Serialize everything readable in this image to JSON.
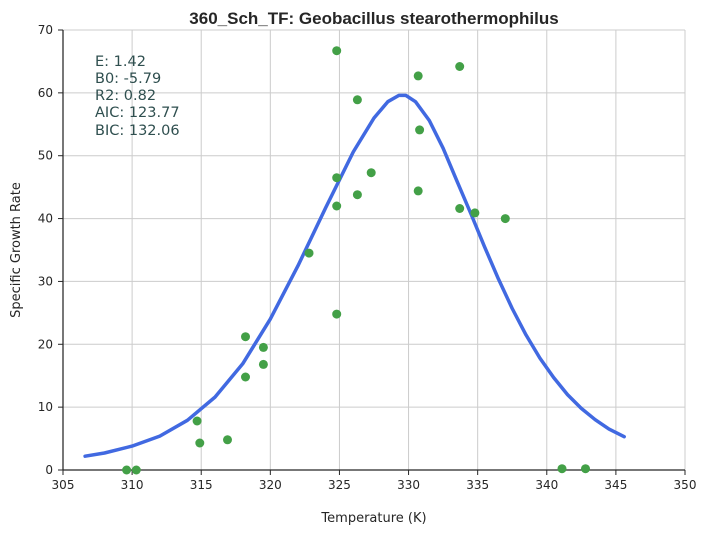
{
  "chart_data": {
    "type": "scatter",
    "title": "360_Sch_TF: Geobacillus stearothermophilus",
    "xlabel": "Temperature (K)",
    "ylabel": "Specific Growth Rate",
    "xlim": [
      305,
      350
    ],
    "ylim": [
      0,
      70
    ],
    "xticks": [
      305,
      310,
      315,
      320,
      325,
      330,
      335,
      340,
      345,
      350
    ],
    "yticks": [
      0,
      10,
      20,
      30,
      40,
      50,
      60,
      70
    ],
    "grid": true,
    "annotations": [
      {
        "label": "E:",
        "value": "1.42",
        "text": "E:  1.42"
      },
      {
        "label": "B0:",
        "value": "-5.79",
        "text": "B0:  -5.79"
      },
      {
        "label": "R2:",
        "value": "0.82",
        "text": "R2:  0.82"
      },
      {
        "label": "AIC:",
        "value": "123.77",
        "text": "AIC: 123.77"
      },
      {
        "label": "BIC:",
        "value": "132.06",
        "text": "BIC: 132.06"
      }
    ],
    "series": [
      {
        "kind": "scatter",
        "color": "#43a047",
        "points": [
          [
            309.6,
            0.0
          ],
          [
            310.3,
            0.0
          ],
          [
            314.7,
            7.8
          ],
          [
            314.9,
            4.3
          ],
          [
            316.9,
            4.8
          ],
          [
            318.2,
            21.2
          ],
          [
            318.2,
            14.8
          ],
          [
            319.5,
            19.5
          ],
          [
            319.5,
            16.8
          ],
          [
            322.8,
            34.5
          ],
          [
            324.8,
            66.7
          ],
          [
            324.8,
            46.5
          ],
          [
            324.8,
            42.0
          ],
          [
            324.8,
            24.8
          ],
          [
            326.3,
            58.9
          ],
          [
            326.3,
            43.8
          ],
          [
            327.3,
            47.3
          ],
          [
            330.7,
            62.7
          ],
          [
            330.8,
            54.1
          ],
          [
            330.7,
            44.4
          ],
          [
            333.7,
            64.2
          ],
          [
            333.7,
            41.6
          ],
          [
            334.8,
            40.9
          ],
          [
            337.0,
            40.0
          ],
          [
            341.1,
            0.2
          ],
          [
            342.8,
            0.2
          ]
        ]
      },
      {
        "kind": "line",
        "color": "#4169e1",
        "points": [
          [
            306.6,
            2.2
          ],
          [
            308.0,
            2.7
          ],
          [
            310.0,
            3.8
          ],
          [
            312.0,
            5.4
          ],
          [
            314.0,
            7.9
          ],
          [
            316.0,
            11.6
          ],
          [
            318.0,
            16.9
          ],
          [
            320.0,
            24.0
          ],
          [
            322.0,
            32.5
          ],
          [
            324.0,
            41.7
          ],
          [
            326.0,
            50.6
          ],
          [
            327.5,
            56.0
          ],
          [
            328.5,
            58.6
          ],
          [
            329.3,
            59.6
          ],
          [
            329.8,
            59.6
          ],
          [
            330.5,
            58.6
          ],
          [
            331.5,
            55.6
          ],
          [
            332.5,
            51.2
          ],
          [
            333.5,
            46.0
          ],
          [
            334.5,
            40.8
          ],
          [
            335.5,
            35.5
          ],
          [
            336.5,
            30.4
          ],
          [
            337.5,
            25.7
          ],
          [
            338.5,
            21.5
          ],
          [
            339.5,
            17.8
          ],
          [
            340.5,
            14.7
          ],
          [
            341.5,
            12.0
          ],
          [
            342.5,
            9.8
          ],
          [
            343.5,
            8.0
          ],
          [
            344.5,
            6.5
          ],
          [
            345.6,
            5.3
          ]
        ]
      }
    ]
  }
}
